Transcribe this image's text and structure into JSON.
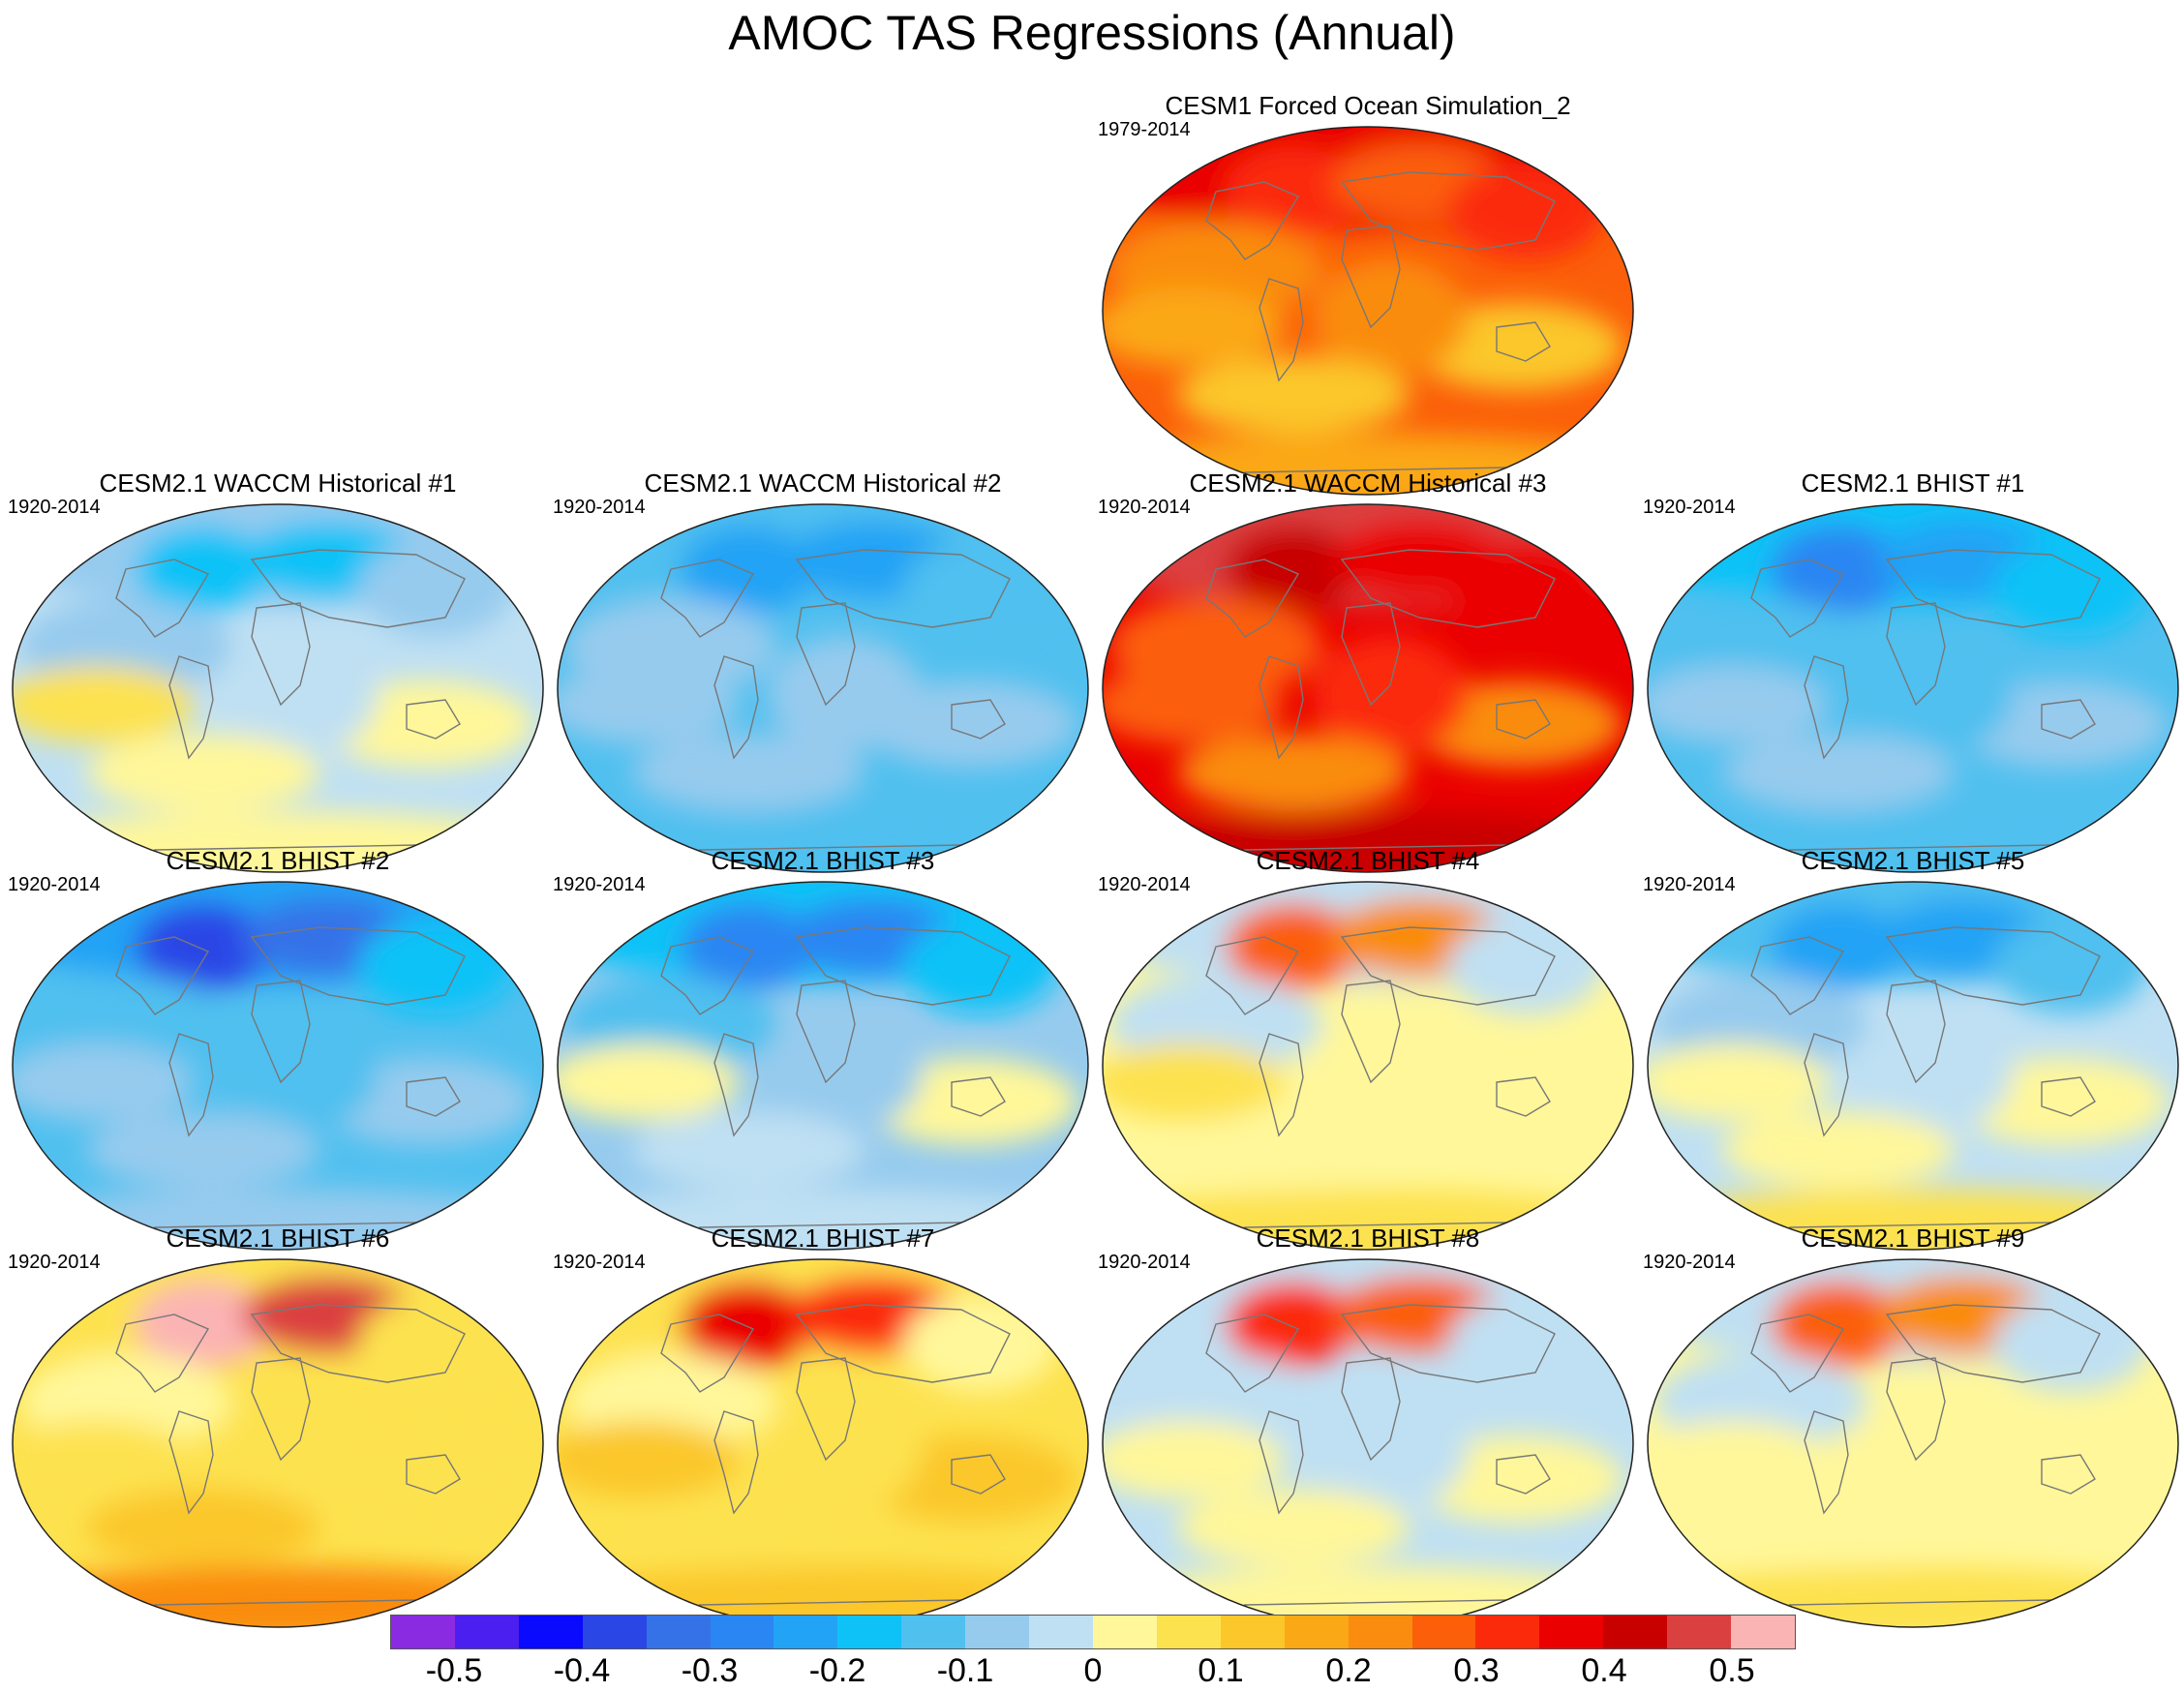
{
  "figure": {
    "title": "AMOC TAS Regressions (Annual)"
  },
  "panels": [
    {
      "title": "CESM1 Forced Ocean Simulation_2",
      "period": "1979-2014",
      "warm": 0.75,
      "ncore": 0.6,
      "tropic": 0.35,
      "south": 0.35
    },
    {
      "title": "CESM2.1 WACCM Historical #1",
      "period": "1920-2014",
      "warm": -0.2,
      "ncore": -0.4,
      "tropic": 0.1,
      "south": 0.0
    },
    {
      "title": "CESM2.1 WACCM Historical #2",
      "period": "1920-2014",
      "warm": -0.3,
      "ncore": -0.5,
      "tropic": -0.2,
      "south": -0.25
    },
    {
      "title": "CESM2.1 WACCM Historical #3",
      "period": "1920-2014",
      "warm": 0.95,
      "ncore": 0.85,
      "tropic": 0.55,
      "south": 0.8
    },
    {
      "title": "CESM2.1 BHIST #1",
      "period": "1920-2014",
      "warm": -0.4,
      "ncore": -0.55,
      "tropic": -0.2,
      "south": -0.3
    },
    {
      "title": "CESM2.1 BHIST #2",
      "period": "1920-2014",
      "warm": -0.5,
      "ncore": -0.75,
      "tropic": -0.15,
      "south": -0.2
    },
    {
      "title": "CESM2.1 BHIST #3",
      "period": "1920-2014",
      "warm": -0.4,
      "ncore": -0.6,
      "tropic": 0.05,
      "south": -0.1
    },
    {
      "title": "CESM2.1 BHIST #4",
      "period": "1920-2014",
      "warm": -0.1,
      "ncore": 0.55,
      "tropic": 0.1,
      "south": 0.15
    },
    {
      "title": "CESM2.1 BHIST #5",
      "period": "1920-2014",
      "warm": -0.3,
      "ncore": -0.5,
      "tropic": 0.05,
      "south": 0.1
    },
    {
      "title": "CESM2.1 BHIST #6",
      "period": "1920-2014",
      "warm": 0.15,
      "ncore": 1.0,
      "tropic": 0.15,
      "south": 0.45
    },
    {
      "title": "CESM2.1 BHIST #7",
      "period": "1920-2014",
      "warm": 0.1,
      "ncore": 0.7,
      "tropic": 0.25,
      "south": 0.2
    },
    {
      "title": "CESM2.1 BHIST #8",
      "period": "1920-2014",
      "warm": -0.1,
      "ncore": 0.6,
      "tropic": 0.0,
      "south": 0.0
    },
    {
      "title": "CESM2.1 BHIST #9",
      "period": "1920-2014",
      "warm": -0.05,
      "ncore": 0.5,
      "tropic": 0.05,
      "south": 0.15
    }
  ],
  "colorbar": {
    "colors": [
      "#8a2be2",
      "#4b1ff0",
      "#0a0aff",
      "#2a47e6",
      "#3572e8",
      "#2a86f2",
      "#22a3f5",
      "#0ec2f7",
      "#50c0ef",
      "#96cbee",
      "#bfe0f3",
      "#fff79a",
      "#fde24f",
      "#fbc72a",
      "#fba816",
      "#fa8c10",
      "#fb5f0a",
      "#fb2a0a",
      "#ea0000",
      "#c80000",
      "#db4040",
      "#fbb4b4"
    ],
    "labels": [
      "-0.5",
      "-0.4",
      "-0.3",
      "-0.2",
      "-0.1",
      "0",
      "0.1",
      "0.2",
      "0.3",
      "0.4",
      "0.5"
    ]
  }
}
